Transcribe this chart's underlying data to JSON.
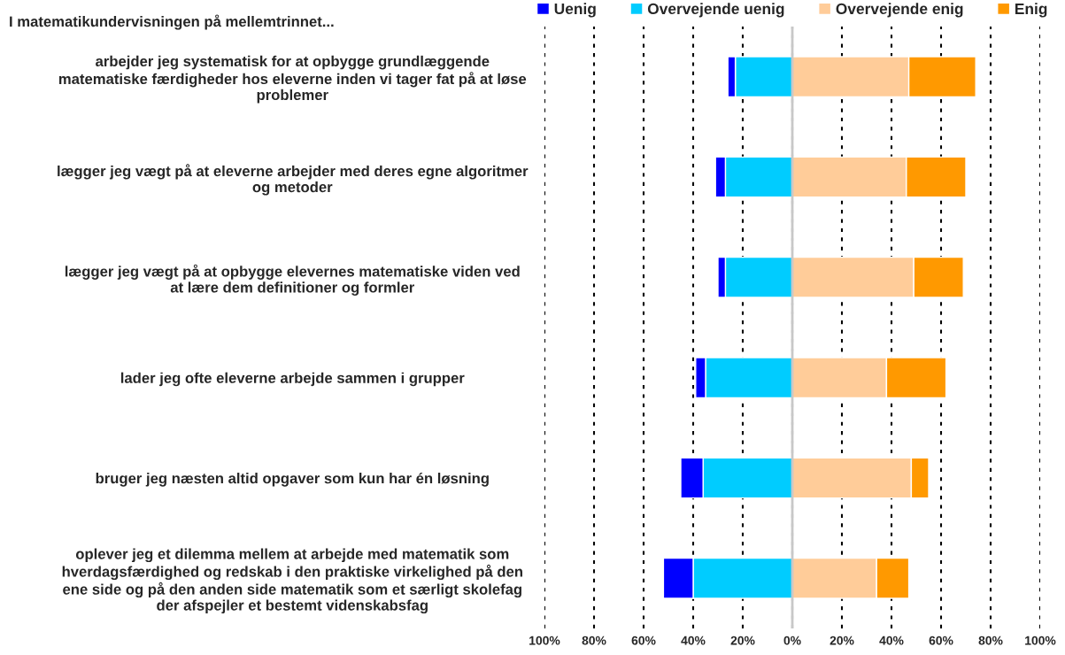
{
  "chart_data": {
    "type": "bar",
    "orientation": "horizontal",
    "stacked": true,
    "title": "I matematikundervisningen på mellemtrinnet...",
    "categories": [
      "arbejder jeg systematisk for at opbygge grundlæggende\nmatematiske færdigheder hos eleverne inden vi tager fat på at løse\nproblemer",
      "lægger jeg vægt på at eleverne arbejder med deres egne algoritmer\nog metoder",
      "lægger jeg vægt på at opbygge elevernes matematiske viden ved\nat lære dem definitioner og formler",
      "lader jeg ofte eleverne arbejde sammen i grupper",
      "bruger jeg næsten altid opgaver som kun har én løsning",
      "oplever jeg et dilemma mellem at arbejde med matematik som\nhverdagsfærdighed og redskab i den praktiske virkelighed på den\nene side og på den anden side matematik som et særligt skolefag\nder afspejler et bestemt videnskabsfag"
    ],
    "series": [
      {
        "name": "Overvejende uenig",
        "color": "#00ccff",
        "values": [
          -23,
          -27,
          -27,
          -35,
          -36,
          -40
        ]
      },
      {
        "name": "Uenig",
        "color": "#0000ff",
        "values": [
          -3,
          -4,
          -3,
          -4,
          -9,
          -12
        ]
      },
      {
        "name": "Overvejende enig",
        "color": "#ffcc99",
        "values": [
          47,
          46,
          49,
          38,
          48,
          34
        ]
      },
      {
        "name": "Enig",
        "color": "#ff9900",
        "values": [
          27,
          24,
          20,
          24,
          7,
          13
        ]
      }
    ],
    "xlim": [
      -100,
      100
    ],
    "xticks": [
      {
        "value": -100,
        "label": "100%"
      },
      {
        "value": -80,
        "label": "80%"
      },
      {
        "value": -60,
        "label": "60%"
      },
      {
        "value": -40,
        "label": "40%"
      },
      {
        "value": -20,
        "label": "20%"
      },
      {
        "value": 0,
        "label": "0%"
      },
      {
        "value": 20,
        "label": "20%"
      },
      {
        "value": 40,
        "label": "40%"
      },
      {
        "value": 60,
        "label": "60%"
      },
      {
        "value": 80,
        "label": "80%"
      },
      {
        "value": 100,
        "label": "100%"
      }
    ],
    "grid": "x",
    "legend": "top"
  }
}
